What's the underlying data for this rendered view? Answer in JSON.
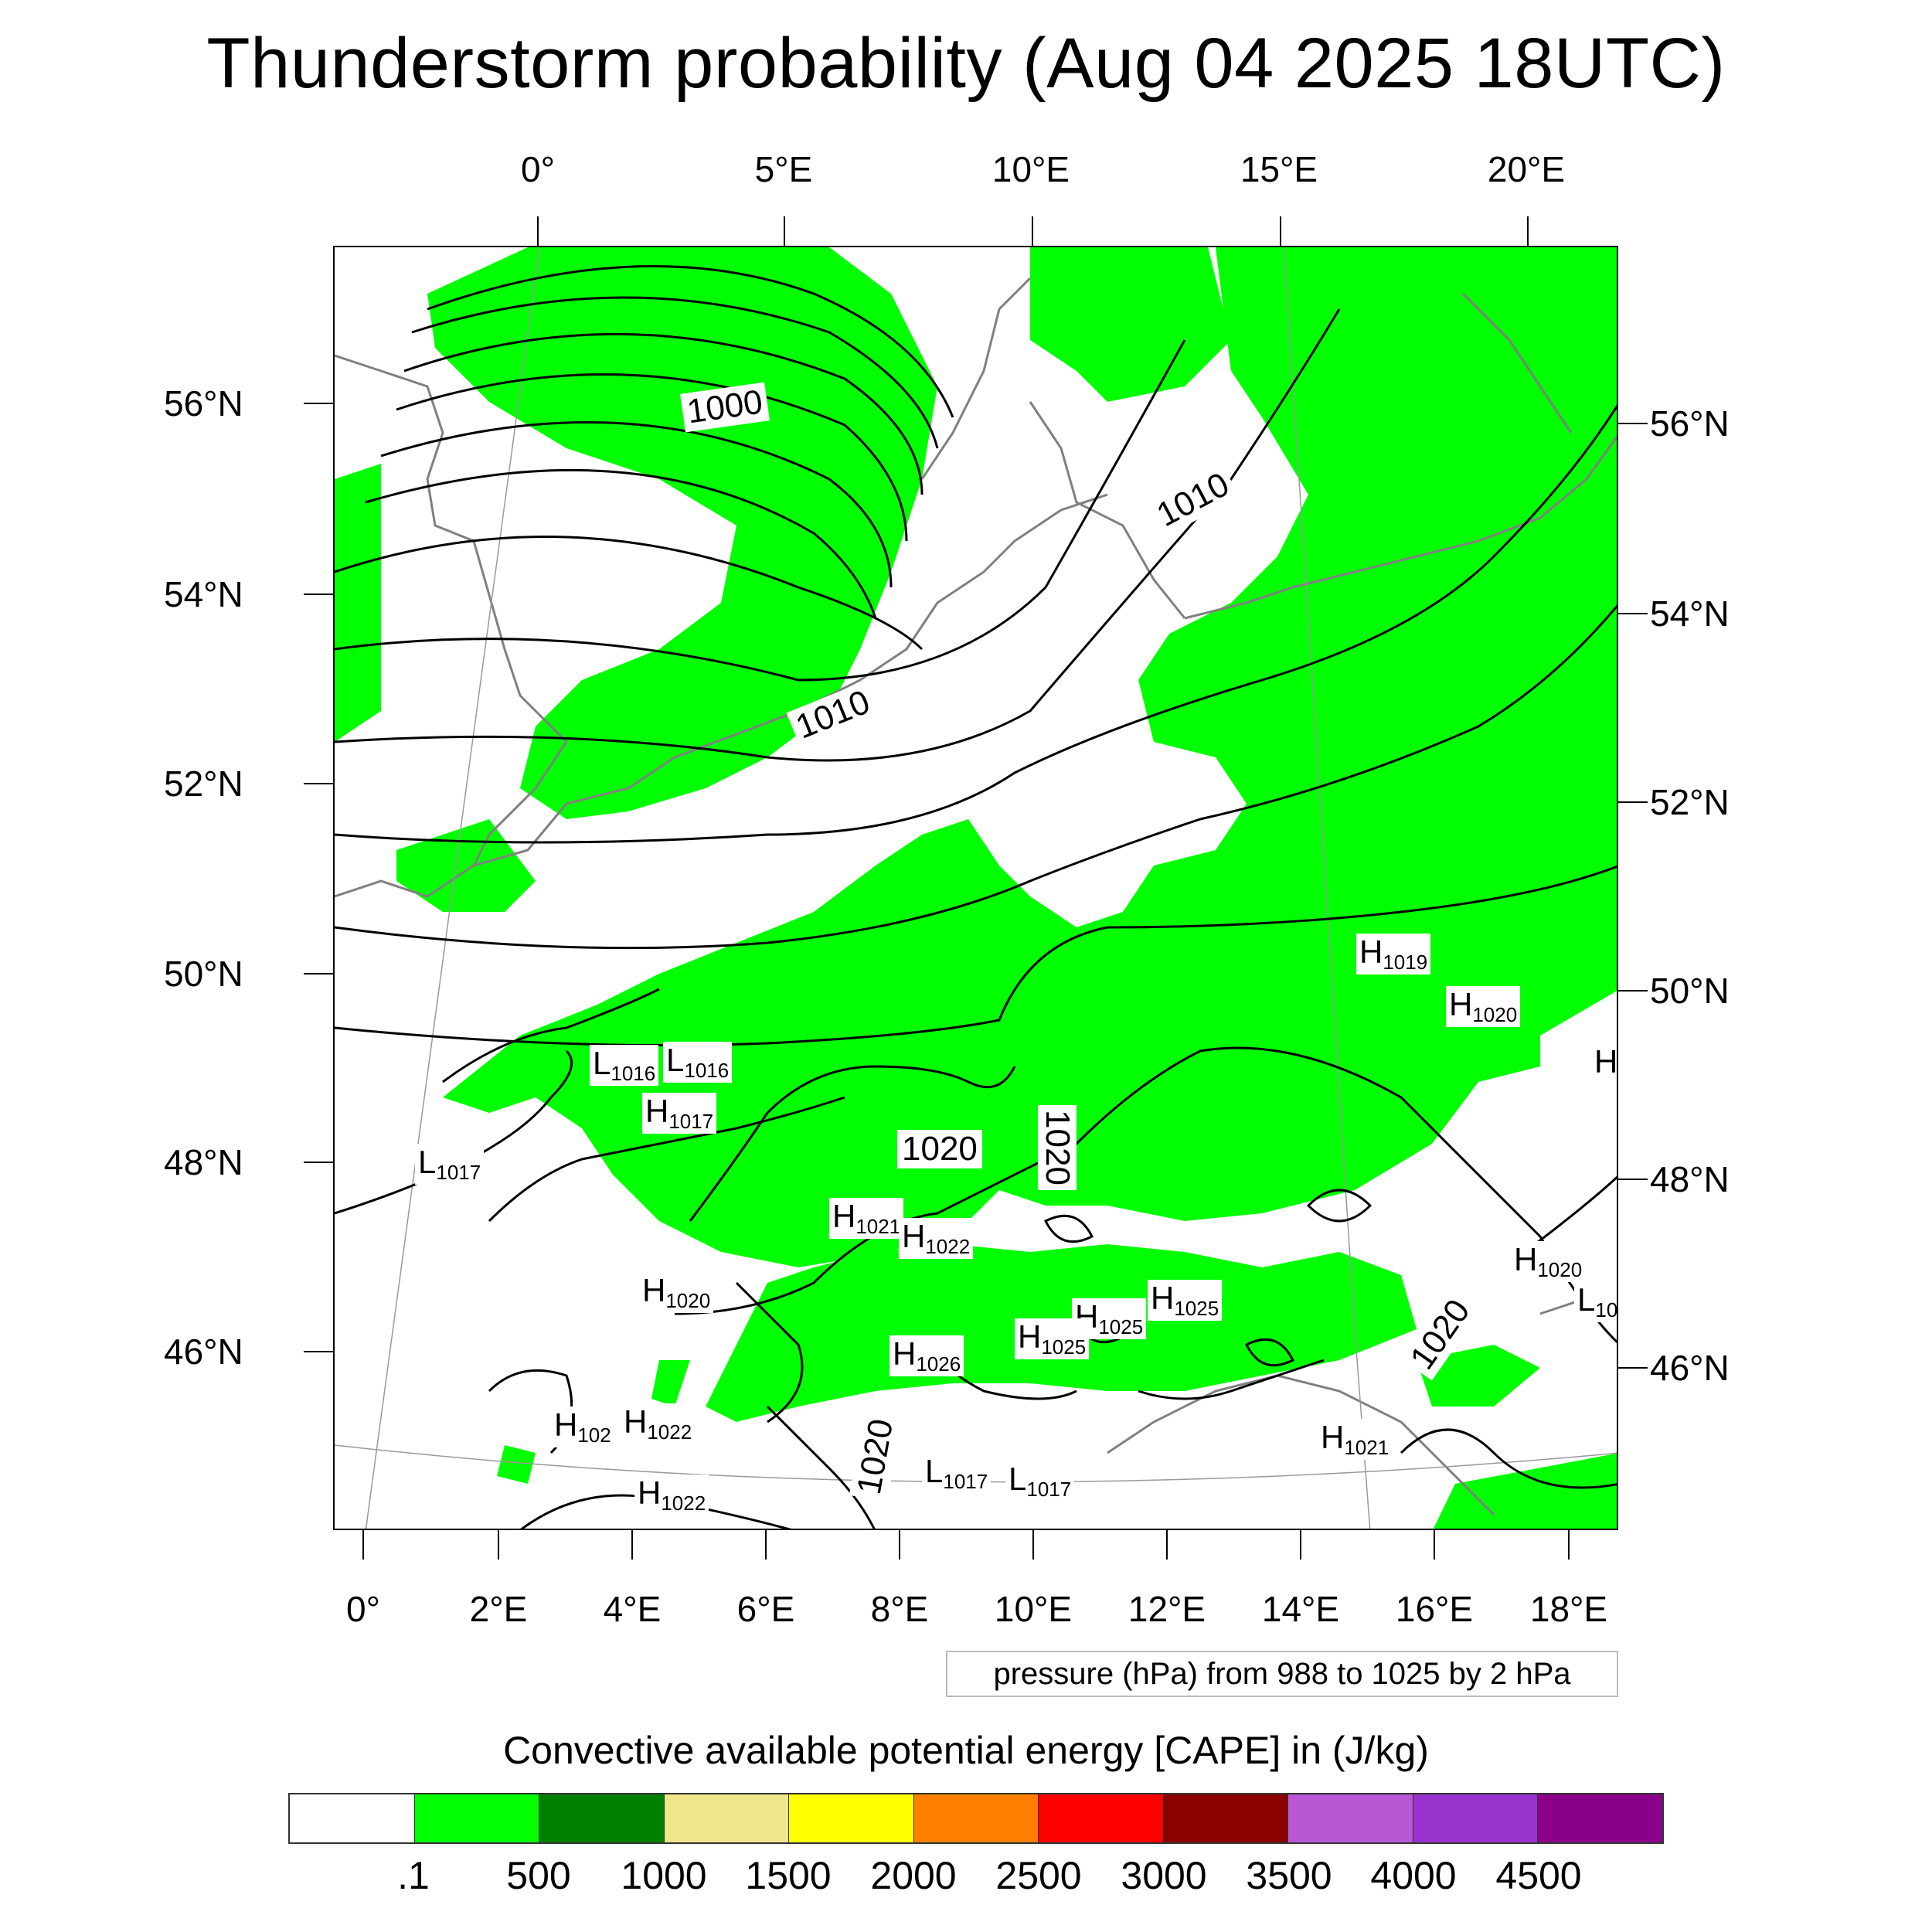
{
  "title": "Thunderstorm probability (Aug 04 2025 18UTC)",
  "axes": {
    "top_lon": [
      "0°",
      "5°E",
      "10°E",
      "15°E",
      "20°E"
    ],
    "bottom_lon": [
      "0°",
      "2°E",
      "4°E",
      "6°E",
      "8°E",
      "10°E",
      "12°E",
      "14°E",
      "16°E",
      "18°E"
    ],
    "left_lat": [
      "56°N",
      "54°N",
      "52°N",
      "50°N",
      "48°N",
      "46°N"
    ],
    "right_lat": [
      "56°N",
      "54°N",
      "52°N",
      "50°N",
      "48°N",
      "46°N"
    ]
  },
  "pressure_info": "pressure (hPa) from 988 to 1025 by 2 hPa",
  "legend": {
    "title": "Convective available potential energy [CAPE] in (J/kg)",
    "colors": [
      "#ffffff",
      "#00ff00",
      "#008000",
      "#f0e68c",
      "#ffff00",
      "#ff8000",
      "#ff0000",
      "#8b0000",
      "#b957d5",
      "#9932cc",
      "#8b008b"
    ],
    "labels": [
      ".1",
      "500",
      "1000",
      "1500",
      "2000",
      "2500",
      "3000",
      "3500",
      "4000",
      "4500"
    ]
  },
  "isobar_labels": [
    "1000",
    "1010",
    "1010",
    "1020",
    "1020",
    "1020",
    "1020"
  ],
  "pressure_centers": [
    {
      "type": "L",
      "value": "1016"
    },
    {
      "type": "L",
      "value": "1016"
    },
    {
      "type": "H",
      "value": "1017"
    },
    {
      "type": "L",
      "value": "1017"
    },
    {
      "type": "H",
      "value": "1019"
    },
    {
      "type": "H",
      "value": "1020"
    },
    {
      "type": "H",
      "value": ""
    },
    {
      "type": "H",
      "value": "1021"
    },
    {
      "type": "H",
      "value": "1022"
    },
    {
      "type": "H",
      "value": "1020"
    },
    {
      "type": "H",
      "value": "1025"
    },
    {
      "type": "H",
      "value": "1025"
    },
    {
      "type": "H",
      "value": "1025"
    },
    {
      "type": "H",
      "value": "1026"
    },
    {
      "type": "H",
      "value": "1020"
    },
    {
      "type": "L",
      "value": "10"
    },
    {
      "type": "H",
      "value": "102"
    },
    {
      "type": "H",
      "value": "1022"
    },
    {
      "type": "H",
      "value": "1022"
    },
    {
      "type": "H",
      "value": "1021"
    },
    {
      "type": "L",
      "value": "1017"
    },
    {
      "type": "L",
      "value": "1017"
    }
  ]
}
